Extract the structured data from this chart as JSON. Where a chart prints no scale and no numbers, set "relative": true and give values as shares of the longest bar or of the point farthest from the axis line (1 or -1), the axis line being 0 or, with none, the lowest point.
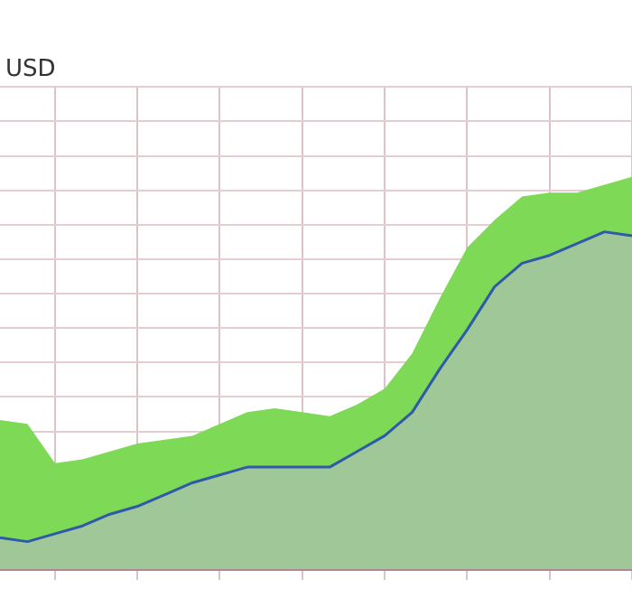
{
  "chart_data": {
    "type": "area",
    "ylabel": "USD",
    "relative": true,
    "grid": true,
    "categories": [
      null,
      null,
      null,
      null,
      null,
      null,
      null,
      null,
      null,
      null,
      null,
      null,
      null,
      null,
      null,
      null,
      null,
      null,
      null,
      null,
      null,
      null,
      null,
      null
    ],
    "series": [
      {
        "color": "#a0c798",
        "values": [
          0.08,
          0.07,
          0.09,
          0.11,
          0.14,
          0.16,
          0.19,
          0.22,
          0.24,
          0.26,
          0.26,
          0.26,
          0.26,
          0.3,
          0.34,
          0.4,
          0.51,
          0.61,
          0.72,
          0.78,
          0.8,
          0.83,
          0.86,
          0.85
        ]
      },
      {
        "type": "area",
        "color": "#7ed957",
        "values": [
          0.38,
          0.37,
          0.27,
          0.28,
          0.3,
          0.32,
          0.33,
          0.34,
          0.37,
          0.4,
          0.41,
          0.4,
          0.39,
          0.42,
          0.46,
          0.55,
          0.69,
          0.82,
          0.89,
          0.95,
          0.96,
          0.96,
          0.98,
          1
        ]
      },
      {
        "type": "line",
        "color": "#2e5aa8",
        "values": [
          0.08,
          0.07,
          0.09,
          0.11,
          0.14,
          0.16,
          0.19,
          0.22,
          0.24,
          0.26,
          0.26,
          0.26,
          0.26,
          0.3,
          0.34,
          0.4,
          0.51,
          0.61,
          0.72,
          0.78,
          0.8,
          0.83,
          0.86,
          0.85
        ]
      }
    ]
  }
}
